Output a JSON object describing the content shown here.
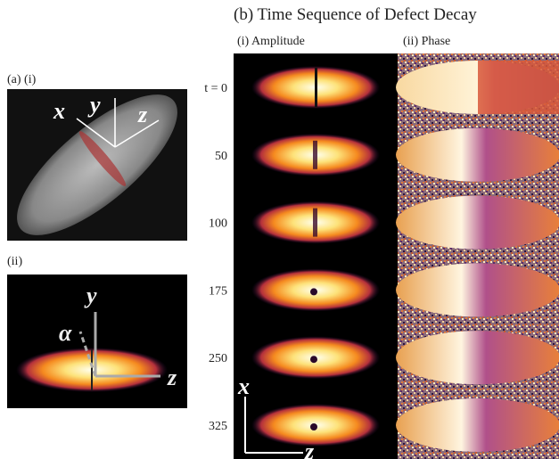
{
  "panel_a": {
    "label_i": "(a) (i)",
    "label_ii": "(ii)",
    "axes_i": [
      "x",
      "y",
      "z"
    ],
    "axes_ii": [
      "y",
      "z",
      "α"
    ]
  },
  "panel_b": {
    "title": "(b) Time Sequence of Defect Decay",
    "col_amplitude": "(i) Amplitude",
    "col_phase": "(ii) Phase",
    "times": [
      "t = 0",
      "50",
      "100",
      "175",
      "250",
      "325"
    ],
    "axes": [
      "x",
      "z"
    ]
  }
}
